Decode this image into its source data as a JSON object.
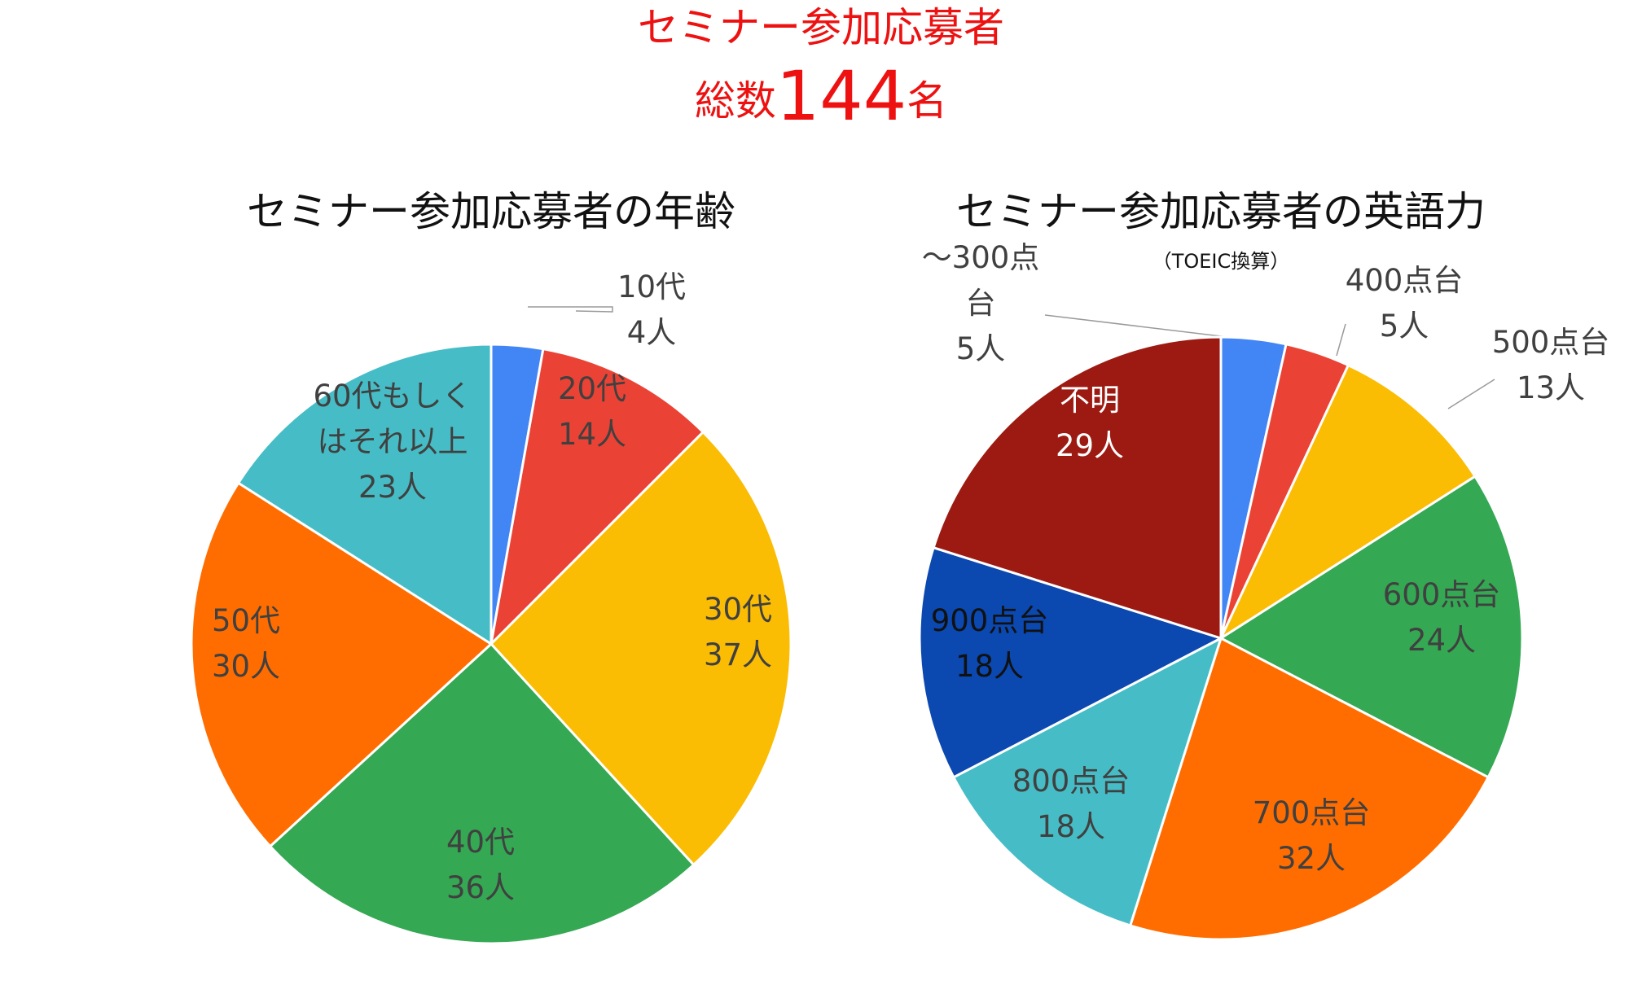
{
  "headline": {
    "line1": "セミナー参加応募者",
    "total_prefix": "総数",
    "total_value": "144",
    "total_suffix": "名"
  },
  "colors": {
    "headline": "#ee1111",
    "leader_line": "#9a9a9a"
  },
  "chart_data": [
    {
      "type": "pie",
      "title": "セミナー参加応募者の年齢",
      "subtitle": "",
      "start": "12 o'clock",
      "direction": "clockwise",
      "slices": [
        {
          "name": "10代",
          "value": 4,
          "label": [
            "10代",
            "4人"
          ],
          "color": "#4285f4",
          "label_color": "#404040",
          "outside_label": true
        },
        {
          "name": "20代",
          "value": 14,
          "label": [
            "20代",
            "14人"
          ],
          "color": "#ea4335",
          "label_color": "#404040"
        },
        {
          "name": "30代",
          "value": 37,
          "label": [
            "30代",
            "37人"
          ],
          "color": "#fbbc04",
          "label_color": "#404040"
        },
        {
          "name": "40代",
          "value": 36,
          "label": [
            "40代",
            "36人"
          ],
          "color": "#34a853",
          "label_color": "#404040"
        },
        {
          "name": "50代",
          "value": 30,
          "label": [
            "50代",
            "30人"
          ],
          "color": "#ff6d01",
          "label_color": "#404040"
        },
        {
          "name": "60代もしくはそれ以上",
          "value": 23,
          "label": [
            "60代もしく",
            "はそれ以上",
            "23人"
          ],
          "color": "#46bdc6",
          "label_color": "#404040"
        }
      ]
    },
    {
      "type": "pie",
      "title": "セミナー参加応募者の英語力",
      "subtitle": "（TOEIC換算）",
      "start": "12 o'clock",
      "direction": "clockwise",
      "slices": [
        {
          "name": "～300点台",
          "value": 5,
          "label": [
            "～300点",
            "台",
            "5人"
          ],
          "color": "#4285f4",
          "label_color": "#404040",
          "outside_label": true
        },
        {
          "name": "400点台",
          "value": 5,
          "label": [
            "400点台",
            "5人"
          ],
          "color": "#ea4335",
          "label_color": "#404040",
          "outside_label": true
        },
        {
          "name": "500点台",
          "value": 13,
          "label": [
            "500点台",
            "13人"
          ],
          "color": "#fbbc04",
          "label_color": "#404040",
          "outside_label": true
        },
        {
          "name": "600点台",
          "value": 24,
          "label": [
            "600点台",
            "24人"
          ],
          "color": "#34a853",
          "label_color": "#404040"
        },
        {
          "name": "700点台",
          "value": 32,
          "label": [
            "700点台",
            "32人"
          ],
          "color": "#ff6d01",
          "label_color": "#404040"
        },
        {
          "name": "800点台",
          "value": 18,
          "label": [
            "800点台",
            "18人"
          ],
          "color": "#46bdc6",
          "label_color": "#404040"
        },
        {
          "name": "900点台",
          "value": 18,
          "label": [
            "900点台",
            "18人"
          ],
          "color": "#0b48b0",
          "label_color": "#111111"
        },
        {
          "name": "不明",
          "value": 29,
          "label": [
            "不明",
            "29人"
          ],
          "color": "#9c1a11",
          "label_color": "#ffffff"
        }
      ]
    }
  ]
}
